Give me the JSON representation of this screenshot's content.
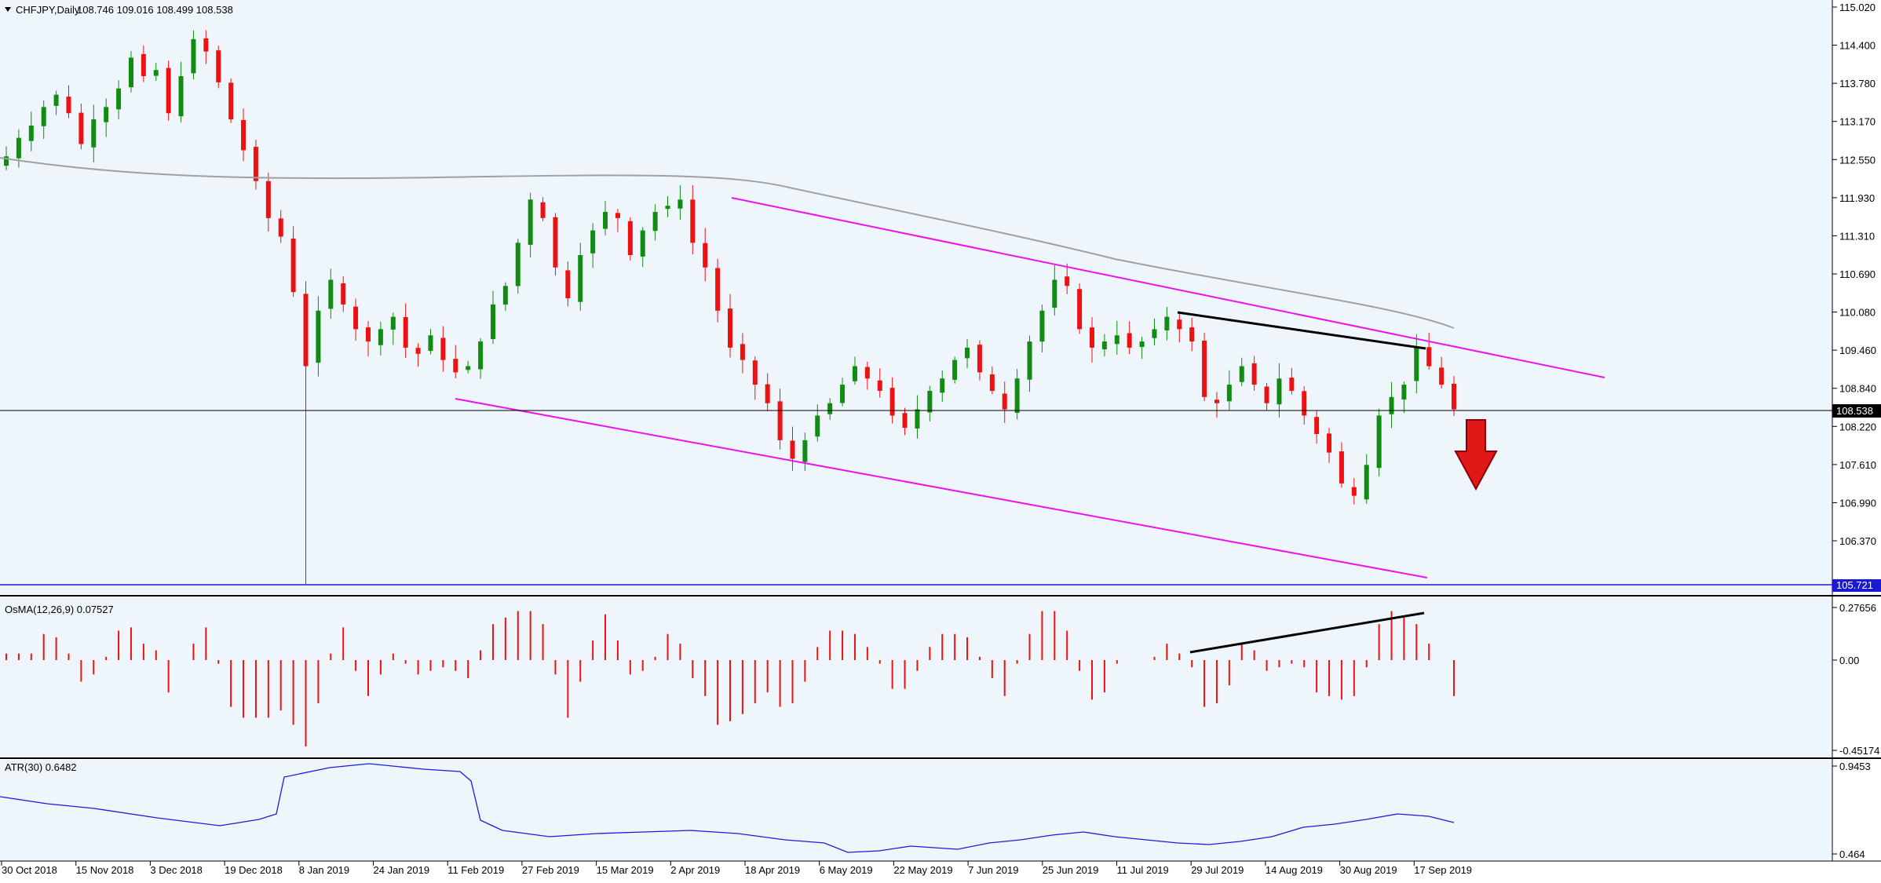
{
  "header": {
    "symbol": "CHFJPY,Daily",
    "ohlc": "108.746 109.016 108.499 108.538",
    "dropdown_icon": "triangle-down-icon"
  },
  "price_panel": {
    "price_axis_labels": [
      "115.020",
      "114.400",
      "113.780",
      "113.170",
      "112.550",
      "111.930",
      "111.310",
      "110.690",
      "110.080",
      "109.460",
      "108.840",
      "108.220",
      "107.610",
      "106.990",
      "106.370"
    ],
    "current_price_tag": "108.538",
    "support_tag": "105.721"
  },
  "osma_panel": {
    "title": "OsMA(12,26,9) 0.07527",
    "axis_labels": [
      "0.27656",
      "0.00",
      "-0.45174"
    ]
  },
  "atr_panel": {
    "title": "ATR(30) 0.6482",
    "axis_labels": [
      "0.9453",
      "0.464"
    ]
  },
  "time_axis_labels": [
    "30 Oct 2018",
    "15 Nov 2018",
    "3 Dec 2018",
    "19 Dec 2018",
    "8 Jan 2019",
    "24 Jan 2019",
    "11 Feb 2019",
    "27 Feb 2019",
    "15 Mar 2019",
    "2 Apr 2019",
    "18 Apr 2019",
    "6 May 2019",
    "22 May 2019",
    "7 Jun 2019",
    "25 Jun 2019",
    "11 Jul 2019",
    "29 Jul 2019",
    "14 Aug 2019",
    "30 Aug 2019",
    "17 Sep 2019"
  ],
  "colors": {
    "background": "#eef6fc",
    "bull": "#118b11",
    "bear": "#ee1111",
    "channel": "#ee11ee",
    "ma": "#a0a0a0",
    "atr": "#1a1ae0",
    "support": "#1a1ad0",
    "arrow": "#e01818"
  },
  "chart_data": {
    "type": "candlestick",
    "symbol": "CHFJPY",
    "timeframe": "Daily",
    "ylim": [
      105.72,
      115.02
    ],
    "last_close": 108.538,
    "moving_average_end": 110.0,
    "downtrend_channel_upper": [
      [
        111.95,
        "4 Apr 2019"
      ],
      [
        109.2,
        "after 17 Sep 2019"
      ]
    ],
    "downtrend_channel_lower": [
      [
        108.7,
        "11 Feb 2019"
      ],
      [
        105.9,
        "early Sep 2019"
      ]
    ],
    "resistance_trendline": [
      110.08,
      109.58
    ],
    "osma_divergence_line": [
      0.02,
      0.27656
    ],
    "support_level": 105.721,
    "closes_approx": [
      112.6,
      112.9,
      113.1,
      113.4,
      113.6,
      113.3,
      112.8,
      113.2,
      113.4,
      113.7,
      114.2,
      113.9,
      114.0,
      113.3,
      113.9,
      114.5,
      114.3,
      113.8,
      113.2,
      112.7,
      112.2,
      111.6,
      111.3,
      110.4,
      109.2,
      110.1,
      110.6,
      110.2,
      109.8,
      109.6,
      109.8,
      110.0,
      109.5,
      109.4,
      109.7,
      109.3,
      109.1,
      109.2,
      109.6,
      110.2,
      110.5,
      111.2,
      111.9,
      111.6,
      110.8,
      110.3,
      111.0,
      111.4,
      111.7,
      111.6,
      111.0,
      111.4,
      111.7,
      111.8,
      111.9,
      111.2,
      110.8,
      110.1,
      109.5,
      109.3,
      108.9,
      108.6,
      108.0,
      107.7,
      108.0,
      108.4,
      108.6,
      108.9,
      109.2,
      109.0,
      108.8,
      108.4,
      108.2,
      108.5,
      108.8,
      109.0,
      109.3,
      109.5,
      109.1,
      108.8,
      108.5,
      109.0,
      109.6,
      110.1,
      110.6,
      110.5,
      109.8,
      109.5,
      109.6,
      109.7,
      109.5,
      109.6,
      109.8,
      110.0,
      109.8,
      109.6,
      108.7,
      108.6,
      108.9,
      109.2,
      108.9,
      108.6,
      109.0,
      108.8,
      108.4,
      108.1,
      107.8,
      107.3,
      107.1,
      107.6,
      108.4,
      108.7,
      108.9,
      109.5,
      109.2,
      108.9,
      108.5
    ]
  }
}
